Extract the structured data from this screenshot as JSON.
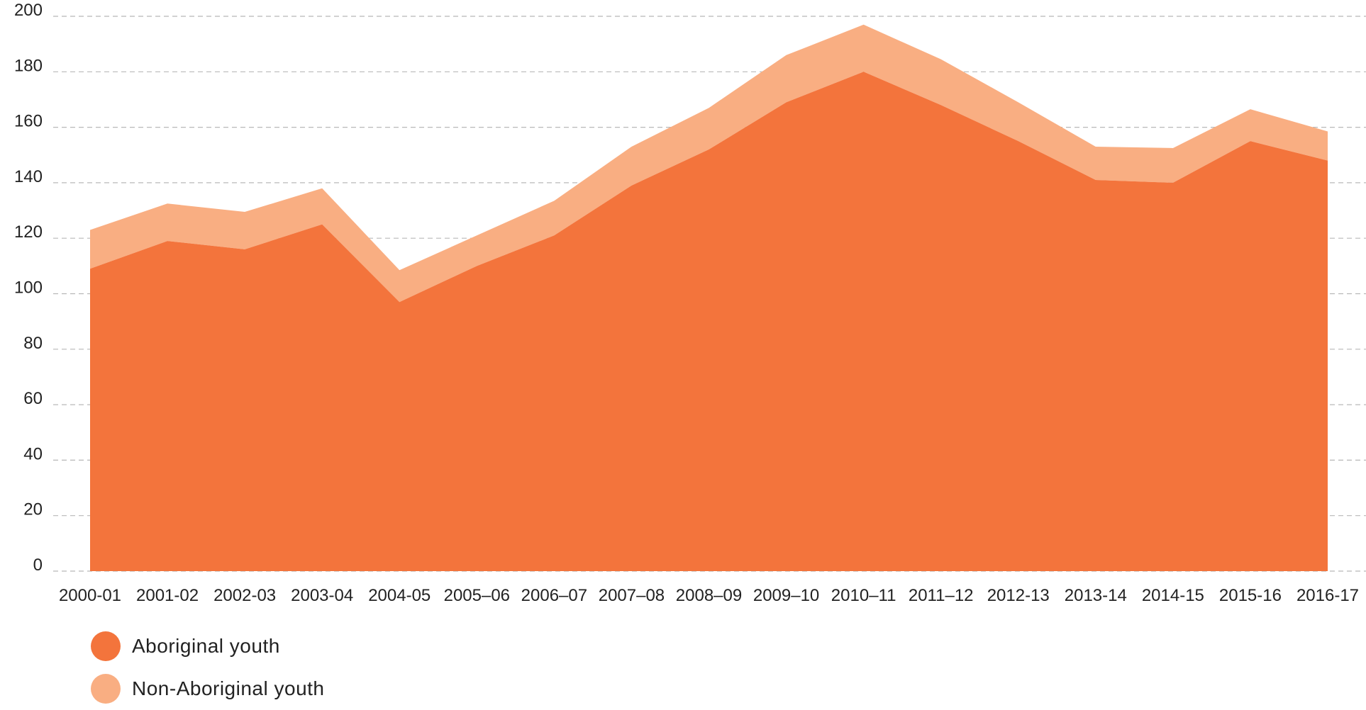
{
  "chart_data": {
    "type": "area",
    "stacked": true,
    "categories": [
      "2000-01",
      "2001-02",
      "2002-03",
      "2003-04",
      "2004-05",
      "2005–06",
      "2006–07",
      "2007–08",
      "2008–09",
      "2009–10",
      "2010–11",
      "2011–12",
      "2012-13",
      "2013-14",
      "2014-15",
      "2015-16",
      "2016-17"
    ],
    "series": [
      {
        "name": "Aboriginal youth",
        "color": "#f3743c",
        "values": [
          109,
          119,
          116,
          125,
          97,
          110,
          121,
          139,
          152,
          169,
          180,
          168,
          155,
          141,
          140,
          155,
          148
        ]
      },
      {
        "name": "Non-Aboriginal youth",
        "color": "#f9ae82",
        "values": [
          14,
          13.5,
          13.5,
          13,
          11.5,
          11,
          12.5,
          14,
          15,
          17,
          17,
          16.5,
          14,
          12,
          12.5,
          11.5,
          10.5
        ]
      }
    ],
    "y_ticks": [
      "0",
      "20",
      "40",
      "60",
      "80",
      "100",
      "120",
      "140",
      "160",
      "180",
      "200"
    ],
    "ylim": [
      0,
      200
    ],
    "grid": "dashed-horizontal",
    "legend_position": "bottom-left"
  }
}
